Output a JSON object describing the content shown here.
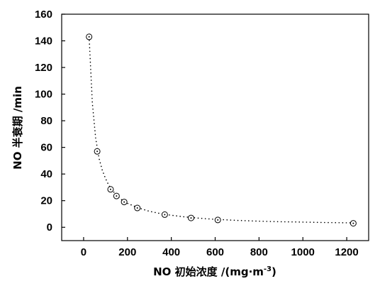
{
  "chart_data": {
    "type": "scatter",
    "xlabel": "NO 初始浓度 /(mg·m",
    "xlabel_sup": "-3",
    "xlabel_end": ")",
    "ylabel": "NO 半衰期 /min",
    "xlim": [
      -100,
      1300
    ],
    "ylim": [
      -10,
      160
    ],
    "x_ticks": [
      0,
      200,
      400,
      600,
      800,
      1000,
      1200
    ],
    "y_ticks": [
      0,
      20,
      40,
      60,
      80,
      100,
      120,
      140,
      160
    ],
    "series": [
      {
        "marker": "open-circle",
        "x": [
          25,
          62,
          123,
          150,
          185,
          245,
          370,
          490,
          612,
          1230
        ],
        "y": [
          143,
          57,
          28.5,
          23.5,
          19,
          14.5,
          9.5,
          7,
          5.5,
          3
        ]
      }
    ],
    "fit_curve": {
      "style": "dotted",
      "x": [
        25,
        40,
        55,
        70,
        85,
        100,
        115,
        130,
        150,
        175,
        200,
        250,
        300,
        350,
        400,
        450,
        500,
        550,
        600,
        700,
        800,
        900,
        1000,
        1100,
        1230
      ],
      "y": [
        143,
        93,
        67,
        52,
        43,
        36.5,
        31.5,
        28,
        24,
        20.5,
        18,
        14.5,
        12,
        10.3,
        9,
        8,
        7.2,
        6.5,
        6,
        5.2,
        4.6,
        4.2,
        3.9,
        3.6,
        3.3
      ]
    }
  }
}
